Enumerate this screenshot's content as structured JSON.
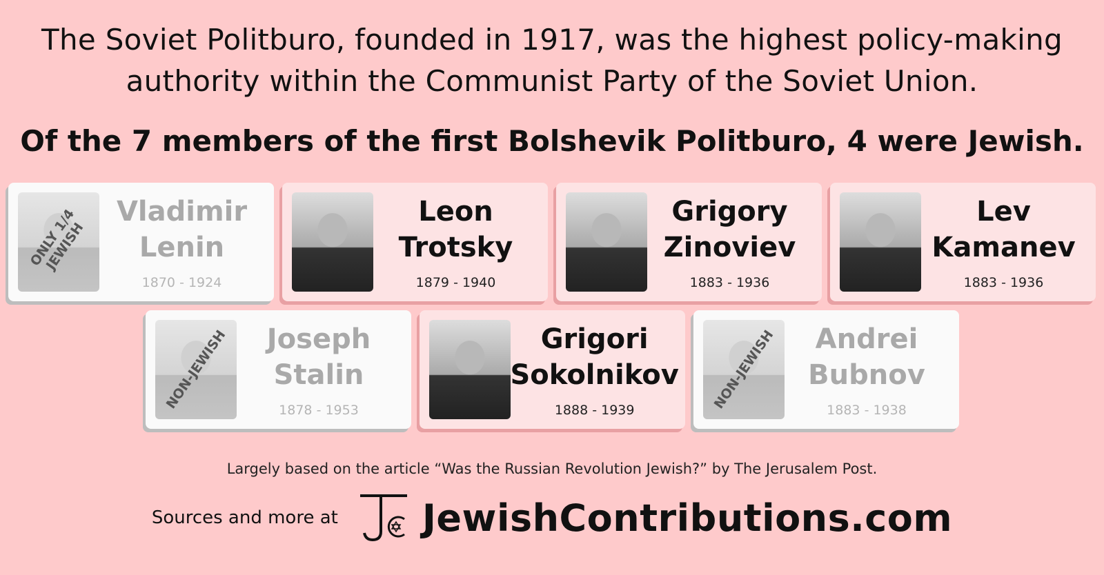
{
  "intro": "The Soviet Politburo, founded in 1917, was the highest policy-making authority within the Communist Party of the Soviet Union.",
  "headline": "Of the 7 members of the first Bolshevik Politburo, 4 were Jewish.",
  "colors": {
    "background": "#fecacb",
    "jewish_card": "#fde3e4",
    "other_card": "#fafafa"
  },
  "members": [
    {
      "first": "Vladimir",
      "last": "Lenin",
      "years": "1870 - 1924",
      "jewish": false,
      "stamp": "ONLY 1/4 JEWISH"
    },
    {
      "first": "Leon",
      "last": "Trotsky",
      "years": "1879 - 1940",
      "jewish": true
    },
    {
      "first": "Grigory",
      "last": "Zinoviev",
      "years": "1883 - 1936",
      "jewish": true
    },
    {
      "first": "Lev",
      "last": "Kamanev",
      "years": "1883 - 1936",
      "jewish": true
    },
    {
      "first": "Joseph",
      "last": "Stalin",
      "years": "1878 - 1953",
      "jewish": false,
      "stamp": "NON-JEWISH"
    },
    {
      "first": "Grigori",
      "last": "Sokolnikov",
      "years": "1888 - 1939",
      "jewish": true
    },
    {
      "first": "Andrei",
      "last": "Bubnov",
      "years": "1883 - 1938",
      "jewish": false,
      "stamp": "NON-JEWISH"
    }
  ],
  "credit": "Largely based on the article “Was the Russian Revolution Jewish?” by The Jerusalem Post.",
  "footer": {
    "sources": "Sources and more at",
    "logo": "JC",
    "site": "JewishContributions.com"
  }
}
